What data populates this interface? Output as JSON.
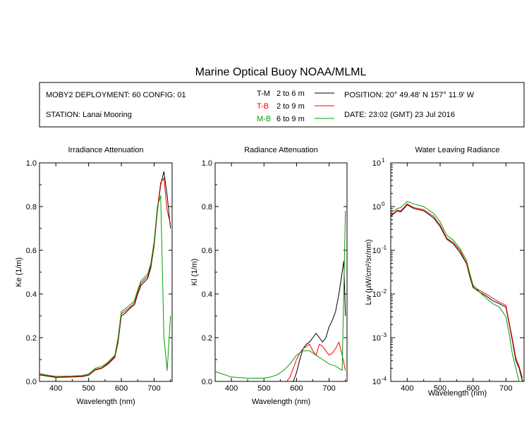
{
  "title": "Marine Optical Buoy NOAA/MLML",
  "info": {
    "deployment": "MOBY2 DEPLOYMENT: 60 CONFIG: 01",
    "station": "STATION: Lanai Mooring",
    "position": "POSITION: 20° 49.48' N   157° 11.9' W",
    "date": "DATE: 23:02 (GMT) 23 Jul 2016",
    "legend": [
      {
        "code": "T-M",
        "range": "2 to 6  m",
        "color": "#000000"
      },
      {
        "code": "T-B",
        "range": "2 to 9  m",
        "color": "#ff0000"
      },
      {
        "code": "M-B",
        "range": "6 to 9  m",
        "color": "#00a000"
      }
    ]
  },
  "chart_data": [
    {
      "type": "line",
      "title": "Irradiance Attenuation",
      "xlabel": "Wavelength (nm)",
      "ylabel": "Ke  (1/m)",
      "xlim": [
        350,
        755
      ],
      "ylim": [
        0,
        1.0
      ],
      "xticks": [
        "400",
        "500",
        "600",
        "700"
      ],
      "yticks": [
        "0.0",
        "0.2",
        "0.4",
        "0.6",
        "0.8",
        "1.0"
      ],
      "series": [
        {
          "name": "T-M",
          "color": "#000000",
          "x": [
            350,
            370,
            400,
            450,
            480,
            500,
            510,
            520,
            540,
            560,
            580,
            590,
            600,
            610,
            630,
            640,
            650,
            660,
            680,
            690,
            700,
            710,
            720,
            730,
            740,
            750
          ],
          "y": [
            0.03,
            0.025,
            0.018,
            0.02,
            0.022,
            0.028,
            0.04,
            0.052,
            0.06,
            0.08,
            0.11,
            0.18,
            0.3,
            0.31,
            0.34,
            0.35,
            0.4,
            0.44,
            0.47,
            0.52,
            0.62,
            0.78,
            0.9,
            0.96,
            0.85,
            0.7
          ]
        },
        {
          "name": "T-B",
          "color": "#ff0000",
          "x": [
            350,
            370,
            400,
            450,
            480,
            500,
            510,
            520,
            540,
            560,
            580,
            590,
            600,
            610,
            630,
            640,
            650,
            660,
            680,
            690,
            700,
            710,
            720,
            730,
            740,
            750
          ],
          "y": [
            0.032,
            0.027,
            0.02,
            0.022,
            0.024,
            0.03,
            0.042,
            0.055,
            0.062,
            0.085,
            0.115,
            0.19,
            0.31,
            0.32,
            0.345,
            0.36,
            0.41,
            0.45,
            0.48,
            0.53,
            0.63,
            0.79,
            0.91,
            0.93,
            0.78,
            0.72
          ]
        },
        {
          "name": "M-B",
          "color": "#00a000",
          "x": [
            350,
            370,
            400,
            450,
            480,
            500,
            510,
            520,
            540,
            560,
            580,
            590,
            600,
            610,
            630,
            640,
            650,
            660,
            680,
            690,
            700,
            710,
            720,
            730,
            740,
            750
          ],
          "y": [
            0.036,
            0.03,
            0.023,
            0.025,
            0.027,
            0.034,
            0.046,
            0.06,
            0.068,
            0.09,
            0.12,
            0.2,
            0.32,
            0.33,
            0.355,
            0.37,
            0.42,
            0.46,
            0.49,
            0.54,
            0.64,
            0.8,
            0.85,
            0.2,
            0.05,
            0.3
          ]
        }
      ]
    },
    {
      "type": "line",
      "title": "Radiance Attenuation",
      "xlabel": "Wavelength (nm)",
      "ylabel": "Kl  (1/m)",
      "xlim": [
        350,
        755
      ],
      "ylim": [
        0,
        1.0
      ],
      "xticks": [
        "400",
        "500",
        "600",
        "700"
      ],
      "yticks": [
        "0.0",
        "0.2",
        "0.4",
        "0.6",
        "0.8",
        "1.0"
      ],
      "series": [
        {
          "name": "T-M",
          "color": "#000000",
          "x": [
            590,
            600,
            610,
            620,
            630,
            640,
            650,
            660,
            670,
            680,
            690,
            700,
            710,
            720,
            730,
            740,
            745,
            750
          ],
          "y": [
            0.0,
            0.04,
            0.1,
            0.15,
            0.17,
            0.18,
            0.2,
            0.22,
            0.2,
            0.18,
            0.2,
            0.25,
            0.28,
            0.32,
            0.4,
            0.5,
            0.55,
            0.3
          ]
        },
        {
          "name": "T-B",
          "color": "#ff0000",
          "x": [
            570,
            580,
            590,
            600,
            610,
            620,
            630,
            640,
            650,
            660,
            670,
            680,
            690,
            700,
            710,
            720,
            730,
            740,
            750
          ],
          "y": [
            0.0,
            0.02,
            0.06,
            0.1,
            0.13,
            0.15,
            0.16,
            0.17,
            0.14,
            0.12,
            0.17,
            0.16,
            0.14,
            0.12,
            0.13,
            0.15,
            0.18,
            0.12,
            0.05
          ]
        },
        {
          "name": "M-B",
          "color": "#00a000",
          "x": [
            350,
            370,
            400,
            450,
            500,
            520,
            540,
            560,
            580,
            600,
            620,
            640,
            650,
            660,
            680,
            700,
            720,
            740,
            750
          ],
          "y": [
            0.045,
            0.035,
            0.02,
            0.015,
            0.015,
            0.02,
            0.03,
            0.05,
            0.08,
            0.12,
            0.14,
            0.14,
            0.13,
            0.12,
            0.1,
            0.08,
            0.07,
            0.05,
            0.78
          ]
        }
      ]
    },
    {
      "type": "line",
      "title": "Water Leaving Radiance",
      "xlabel": "Wavelength (nm)",
      "ylabel": "Lw  (µW/cm²/sr/nm)",
      "xscale": "linear",
      "yscale": "log",
      "xlim": [
        350,
        755
      ],
      "ylim": [
        0.0001,
        10
      ],
      "xticks": [
        "400",
        "500",
        "600",
        "700"
      ],
      "ytick_values": [
        0.0001,
        0.001,
        0.01,
        0.1,
        1,
        10
      ],
      "series": [
        {
          "name": "T-M",
          "color": "#000000",
          "x": [
            350,
            360,
            370,
            380,
            390,
            400,
            420,
            450,
            480,
            500,
            520,
            540,
            560,
            580,
            590,
            600,
            620,
            640,
            660,
            680,
            700,
            710,
            720,
            730,
            740,
            750
          ],
          "y": [
            0.6,
            0.7,
            0.8,
            0.75,
            0.9,
            1.1,
            0.9,
            0.8,
            0.55,
            0.35,
            0.18,
            0.14,
            0.09,
            0.05,
            0.025,
            0.014,
            0.011,
            0.009,
            0.007,
            0.006,
            0.005,
            0.002,
            0.0008,
            0.0003,
            0.0002,
            0.0001
          ]
        },
        {
          "name": "T-B",
          "color": "#ff0000",
          "x": [
            350,
            360,
            370,
            380,
            390,
            400,
            420,
            450,
            480,
            500,
            520,
            540,
            560,
            580,
            590,
            600,
            620,
            640,
            660,
            680,
            700,
            710,
            720,
            730,
            740,
            750
          ],
          "y": [
            0.65,
            0.72,
            0.82,
            0.8,
            0.95,
            1.15,
            0.95,
            0.85,
            0.6,
            0.38,
            0.19,
            0.15,
            0.1,
            0.052,
            0.027,
            0.015,
            0.012,
            0.01,
            0.008,
            0.0065,
            0.0055,
            0.0022,
            0.0009,
            0.00035,
            0.00022,
            0.00012
          ]
        },
        {
          "name": "M-B",
          "color": "#00a000",
          "x": [
            350,
            360,
            370,
            380,
            390,
            400,
            420,
            450,
            480,
            500,
            520,
            540,
            560,
            580,
            590,
            600,
            620,
            640,
            660,
            680,
            700,
            710,
            720,
            730,
            740,
            750
          ],
          "y": [
            0.75,
            0.8,
            0.9,
            0.95,
            1.1,
            1.3,
            1.15,
            1.0,
            0.7,
            0.45,
            0.22,
            0.17,
            0.11,
            0.06,
            0.03,
            0.016,
            0.011,
            0.008,
            0.006,
            0.005,
            0.003,
            0.0012,
            0.0004,
            0.0002,
            0.0001,
            0.0001
          ]
        }
      ]
    }
  ]
}
